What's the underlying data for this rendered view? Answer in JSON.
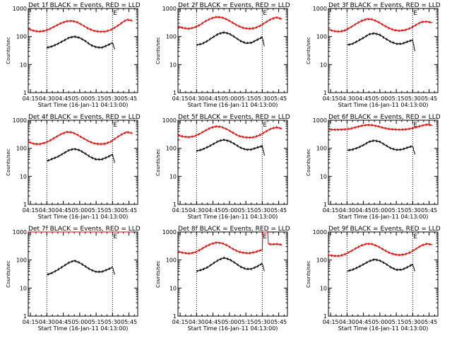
{
  "figure": {
    "x_ticks": [
      "04:15",
      "04:30",
      "04:45",
      "05:00",
      "05:15",
      "05:30",
      "05:45"
    ],
    "x_label": "Start Time (16-Jan-11 04:13:00)",
    "y_label": "Counts/sec",
    "y_ticks": [
      "1",
      "10",
      "100",
      "1000"
    ],
    "marker_text": "E",
    "colors": {
      "events": "#000000",
      "lld": "#e00000"
    }
  },
  "chart_data": [
    {
      "type": "line",
      "detector": "1f",
      "title": "Det 1f BLACK = Events, RED = LLD",
      "xlabel": "Start Time (16-Jan-11 04:13:00)",
      "ylabel": "Counts/sec",
      "x_unit": "minutes after 04:13",
      "xlim": [
        0,
        100
      ],
      "ylim": [
        1,
        1000
      ],
      "yscale": "log",
      "vlines_min": [
        17,
        77
      ],
      "marker_min": 77,
      "series": [
        {
          "name": "LLD",
          "color": "red",
          "x": [
            0,
            5,
            10,
            15,
            20,
            25,
            30,
            35,
            40,
            45,
            50,
            55,
            60,
            65,
            70,
            75,
            80,
            85,
            90,
            95
          ],
          "y": [
            190,
            160,
            150,
            160,
            190,
            240,
            300,
            350,
            360,
            320,
            250,
            190,
            160,
            150,
            150,
            170,
            220,
            300,
            400,
            370
          ]
        },
        {
          "name": "Events",
          "color": "black",
          "x": [
            17,
            22,
            27,
            32,
            37,
            42,
            47,
            52,
            57,
            62,
            67,
            72,
            77,
            79
          ],
          "y": [
            40,
            45,
            55,
            70,
            90,
            100,
            90,
            70,
            50,
            42,
            40,
            48,
            60,
            35
          ]
        }
      ]
    },
    {
      "type": "line",
      "detector": "2f",
      "title": "Det 2f BLACK = Events, RED = LLD",
      "xlabel": "Start Time (16-Jan-11 04:13:00)",
      "ylabel": "Counts/sec",
      "x_unit": "minutes after 04:13",
      "xlim": [
        0,
        100
      ],
      "ylim": [
        1,
        1000
      ],
      "yscale": "log",
      "vlines_min": [
        17,
        77
      ],
      "marker_min": 77,
      "series": [
        {
          "name": "LLD",
          "color": "red",
          "x": [
            0,
            5,
            10,
            15,
            20,
            25,
            30,
            35,
            40,
            45,
            50,
            55,
            60,
            65,
            70,
            75,
            80,
            85,
            90,
            95
          ],
          "y": [
            230,
            200,
            190,
            210,
            260,
            350,
            440,
            500,
            480,
            400,
            310,
            240,
            200,
            190,
            200,
            240,
            320,
            420,
            480,
            420
          ]
        },
        {
          "name": "Events",
          "color": "black",
          "x": [
            17,
            22,
            27,
            32,
            37,
            42,
            47,
            52,
            57,
            62,
            67,
            72,
            77,
            79
          ],
          "y": [
            50,
            55,
            70,
            95,
            125,
            140,
            125,
            95,
            70,
            58,
            60,
            75,
            95,
            45
          ]
        }
      ]
    },
    {
      "type": "line",
      "detector": "3f",
      "title": "Det 3f BLACK = Events, RED = LLD",
      "xlabel": "Start Time (16-Jan-11 04:13:00)",
      "ylabel": "Counts/sec",
      "x_unit": "minutes after 04:13",
      "xlim": [
        0,
        100
      ],
      "ylim": [
        1,
        1000
      ],
      "yscale": "log",
      "vlines_min": [
        17,
        77
      ],
      "marker_min": 77,
      "series": [
        {
          "name": "LLD",
          "color": "red",
          "x": [
            0,
            5,
            10,
            15,
            20,
            25,
            30,
            35,
            40,
            45,
            50,
            55,
            60,
            65,
            70,
            75,
            80,
            85,
            90,
            95
          ],
          "y": [
            180,
            155,
            150,
            165,
            210,
            280,
            360,
            420,
            410,
            340,
            260,
            200,
            170,
            160,
            170,
            200,
            260,
            330,
            340,
            310
          ]
        },
        {
          "name": "Events",
          "color": "black",
          "x": [
            17,
            22,
            27,
            32,
            37,
            42,
            47,
            52,
            57,
            62,
            67,
            72,
            77,
            79
          ],
          "y": [
            50,
            55,
            70,
            90,
            120,
            130,
            115,
            85,
            65,
            55,
            55,
            65,
            75,
            30
          ]
        }
      ]
    },
    {
      "type": "line",
      "detector": "4f",
      "title": "Det 4f BLACK = Events, RED = LLD",
      "xlabel": "Start Time (16-Jan-11 04:13:00)",
      "ylabel": "Counts/sec",
      "x_unit": "minutes after 04:13",
      "xlim": [
        0,
        100
      ],
      "ylim": [
        1,
        1000
      ],
      "yscale": "log",
      "vlines_min": [
        17,
        77
      ],
      "marker_min": 77,
      "series": [
        {
          "name": "LLD",
          "color": "red",
          "x": [
            0,
            5,
            10,
            15,
            20,
            25,
            30,
            35,
            40,
            45,
            50,
            55,
            60,
            65,
            70,
            75,
            80,
            85,
            90,
            95
          ],
          "y": [
            170,
            145,
            140,
            155,
            190,
            250,
            320,
            380,
            370,
            300,
            230,
            180,
            150,
            140,
            145,
            170,
            230,
            310,
            380,
            340
          ]
        },
        {
          "name": "Events",
          "color": "black",
          "x": [
            17,
            22,
            27,
            32,
            37,
            42,
            47,
            52,
            57,
            62,
            67,
            72,
            77,
            79
          ],
          "y": [
            35,
            42,
            50,
            65,
            85,
            95,
            85,
            65,
            48,
            40,
            40,
            48,
            60,
            30
          ]
        }
      ]
    },
    {
      "type": "line",
      "detector": "5f",
      "title": "Det 5f BLACK = Events, RED = LLD",
      "xlabel": "Start Time (16-Jan-11 04:13:00)",
      "ylabel": "Counts/sec",
      "x_unit": "minutes after 04:13",
      "xlim": [
        0,
        100
      ],
      "ylim": [
        1,
        1000
      ],
      "yscale": "log",
      "vlines_min": [
        17,
        77
      ],
      "marker_min": 77,
      "series": [
        {
          "name": "LLD",
          "color": "red",
          "x": [
            0,
            5,
            10,
            15,
            20,
            25,
            30,
            35,
            40,
            45,
            50,
            55,
            60,
            65,
            70,
            75,
            80,
            85,
            90,
            95
          ],
          "y": [
            290,
            260,
            250,
            270,
            330,
            430,
            540,
            600,
            570,
            470,
            360,
            280,
            250,
            240,
            250,
            300,
            390,
            500,
            560,
            500
          ]
        },
        {
          "name": "Events",
          "color": "black",
          "x": [
            17,
            22,
            27,
            32,
            37,
            42,
            47,
            52,
            57,
            62,
            67,
            72,
            77,
            79
          ],
          "y": [
            80,
            90,
            110,
            140,
            180,
            200,
            180,
            140,
            105,
            90,
            90,
            105,
            120,
            55
          ]
        }
      ]
    },
    {
      "type": "line",
      "detector": "6f",
      "title": "Det 6f BLACK = Events, RED = LLD",
      "xlabel": "Start Time (16-Jan-11 04:13:00)",
      "ylabel": "Counts/sec",
      "x_unit": "minutes after 04:13",
      "xlim": [
        0,
        100
      ],
      "ylim": [
        1,
        1000
      ],
      "yscale": "log",
      "vlines_min": [
        17,
        77
      ],
      "marker_min": 77,
      "series": [
        {
          "name": "LLD",
          "color": "red",
          "x": [
            0,
            5,
            10,
            15,
            20,
            25,
            30,
            35,
            40,
            45,
            50,
            55,
            60,
            65,
            70,
            75,
            80,
            85,
            90,
            95
          ],
          "y": [
            470,
            460,
            460,
            470,
            500,
            560,
            630,
            680,
            670,
            610,
            540,
            490,
            470,
            460,
            470,
            500,
            560,
            640,
            700,
            660
          ]
        },
        {
          "name": "Events",
          "color": "black",
          "x": [
            17,
            22,
            27,
            32,
            37,
            42,
            47,
            52,
            57,
            62,
            67,
            72,
            77,
            79
          ],
          "y": [
            85,
            90,
            105,
            130,
            170,
            190,
            170,
            130,
            100,
            88,
            90,
            105,
            120,
            60
          ]
        }
      ]
    },
    {
      "type": "line",
      "detector": "7f",
      "title": "Det 7f BLACK = Events, RED = LLD",
      "xlabel": "Start Time (16-Jan-11 04:13:00)",
      "ylabel": "Counts/sec",
      "x_unit": "minutes after 04:13",
      "xlim": [
        0,
        100
      ],
      "ylim": [
        1,
        1000
      ],
      "yscale": "log",
      "vlines_min": [
        17,
        77
      ],
      "marker_min": 77,
      "series": [
        {
          "name": "LLD",
          "color": "red",
          "x": [
            0,
            10,
            20,
            30,
            40,
            50,
            60,
            70,
            80,
            90,
            95
          ],
          "y": [
            1000,
            1000,
            1000,
            1000,
            1000,
            1000,
            1000,
            1000,
            1000,
            1000,
            1000
          ]
        },
        {
          "name": "Events",
          "color": "black",
          "x": [
            17,
            22,
            27,
            32,
            37,
            42,
            47,
            52,
            57,
            62,
            67,
            72,
            77,
            79
          ],
          "y": [
            30,
            35,
            45,
            60,
            80,
            95,
            80,
            60,
            45,
            38,
            38,
            45,
            55,
            30
          ]
        }
      ]
    },
    {
      "type": "line",
      "detector": "8f",
      "title": "Det 8f BLACK = Events, RED = LLD",
      "xlabel": "Start Time (16-Jan-11 04:13:00)",
      "ylabel": "Counts/sec",
      "x_unit": "minutes after 04:13",
      "xlim": [
        0,
        100
      ],
      "ylim": [
        1,
        1000
      ],
      "yscale": "log",
      "vlines_min": [
        17,
        77
      ],
      "marker_min": 77,
      "series": [
        {
          "name": "LLD",
          "color": "red",
          "x": [
            0,
            5,
            10,
            15,
            20,
            25,
            30,
            35,
            40,
            45,
            50,
            55,
            60,
            65,
            70,
            75,
            77,
            77.5,
            80,
            82,
            82.5,
            85,
            90,
            95
          ],
          "y": [
            200,
            180,
            170,
            185,
            230,
            300,
            370,
            420,
            400,
            330,
            250,
            200,
            180,
            175,
            190,
            220,
            230,
            1000,
            1000,
            1000,
            380,
            360,
            370,
            350
          ]
        },
        {
          "name": "Events",
          "color": "black",
          "x": [
            17,
            22,
            27,
            32,
            37,
            42,
            47,
            52,
            57,
            62,
            67,
            72,
            77,
            79
          ],
          "y": [
            40,
            45,
            55,
            75,
            100,
            120,
            105,
            80,
            58,
            48,
            48,
            58,
            75,
            40
          ]
        }
      ]
    },
    {
      "type": "line",
      "detector": "9f",
      "title": "Det 9f BLACK = Events, RED = LLD",
      "xlabel": "Start Time (16-Jan-11 04:13:00)",
      "ylabel": "Counts/sec",
      "x_unit": "minutes after 04:13",
      "xlim": [
        0,
        100
      ],
      "ylim": [
        1,
        1000
      ],
      "yscale": "log",
      "vlines_min": [
        17,
        77
      ],
      "marker_min": 77,
      "series": [
        {
          "name": "LLD",
          "color": "red",
          "x": [
            0,
            5,
            10,
            15,
            20,
            25,
            30,
            35,
            40,
            45,
            50,
            55,
            60,
            65,
            70,
            75,
            80,
            85,
            90,
            95
          ],
          "y": [
            150,
            140,
            140,
            160,
            200,
            260,
            330,
            380,
            370,
            310,
            240,
            185,
            160,
            150,
            160,
            190,
            250,
            330,
            380,
            350
          ]
        },
        {
          "name": "Events",
          "color": "black",
          "x": [
            17,
            22,
            27,
            32,
            37,
            42,
            47,
            52,
            57,
            62,
            67,
            72,
            77,
            79
          ],
          "y": [
            40,
            45,
            55,
            70,
            90,
            105,
            95,
            75,
            55,
            45,
            45,
            55,
            70,
            40
          ]
        }
      ]
    }
  ]
}
